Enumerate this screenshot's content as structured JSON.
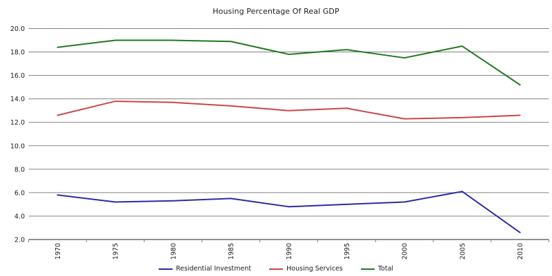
{
  "title": "Housing Percentage Of Real GDP",
  "chart_data": {
    "type": "line",
    "title": "Housing Percentage Of Real GDP",
    "x": [
      "1970",
      "1975",
      "1980",
      "1985",
      "1990",
      "1995",
      "2000",
      "2005",
      "2010"
    ],
    "series": [
      {
        "name": "Residential Investment",
        "color": "#2A2AA5",
        "values": [
          5.8,
          5.2,
          5.3,
          5.5,
          4.8,
          5.0,
          5.2,
          6.1,
          2.6
        ]
      },
      {
        "name": "Housing Services",
        "color": "#CC4444",
        "values": [
          12.6,
          13.8,
          13.7,
          13.4,
          13.0,
          13.2,
          12.3,
          12.4,
          12.6
        ]
      },
      {
        "name": "Total",
        "color": "#1F7A1F",
        "values": [
          18.4,
          19.0,
          19.0,
          18.9,
          17.8,
          18.2,
          17.5,
          18.5,
          15.2
        ]
      }
    ],
    "xlabel": "",
    "ylabel": "",
    "ylim": [
      2.0,
      20.0
    ],
    "ytick_step": 2.0,
    "ytick_labels": [
      "2.0",
      "4.0",
      "6.0",
      "8.0",
      "10.0",
      "12.0",
      "14.0",
      "16.0",
      "18.0",
      "20.0"
    ],
    "grid": true,
    "legend_position": "bottom",
    "axis_color": "#808080",
    "text_color": "#1a1a1a"
  }
}
